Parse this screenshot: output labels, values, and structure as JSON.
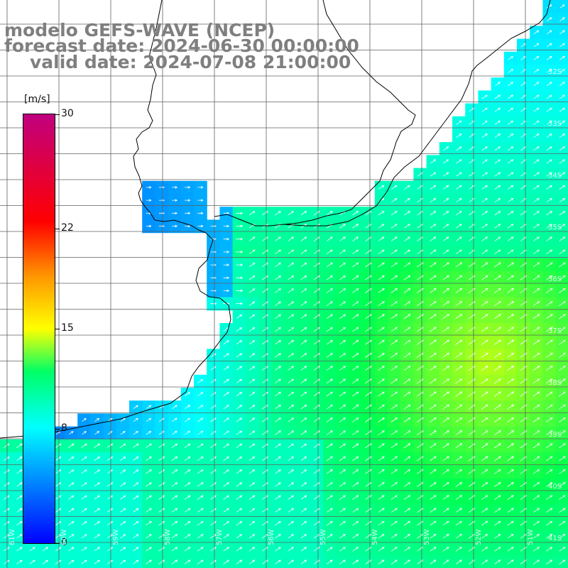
{
  "title": {
    "line1": "modelo GEFS-WAVE (NCEP)",
    "line2": "forecast date: 2024-06-30 00:00:00",
    "line3": "valid date: 2024-07-08 21:00:00"
  },
  "colorbar": {
    "unit": "[m/s]",
    "ticks": [
      {
        "label": "30",
        "value": 30
      },
      {
        "label": "22",
        "value": 22
      },
      {
        "label": "15",
        "value": 15
      },
      {
        "label": "8",
        "value": 8
      },
      {
        "label": "0",
        "value": 0
      }
    ],
    "min": 0,
    "max": 30,
    "colors": [
      "#0000ff",
      "#00ffff",
      "#00ff00",
      "#ffff00",
      "#ff0000",
      "#c0007f"
    ]
  },
  "map": {
    "latitude_labels": [
      "32S",
      "33S",
      "34S",
      "35S",
      "36S",
      "37S",
      "38S",
      "39S",
      "40S",
      "41S"
    ],
    "longitude_labels": [
      "61W",
      "60W",
      "59W",
      "58W",
      "57W",
      "56W",
      "55W",
      "54W",
      "53W",
      "52W",
      "51W"
    ],
    "land_color": "#ffffff",
    "grid_color": "#606060",
    "coast_color": "#000000",
    "vector_color": "#ffffff",
    "wind_direction_to": "northeast",
    "field_summary": "wind speed 4-14 m/s, maximum ~14 m/s near 38S 52W"
  }
}
